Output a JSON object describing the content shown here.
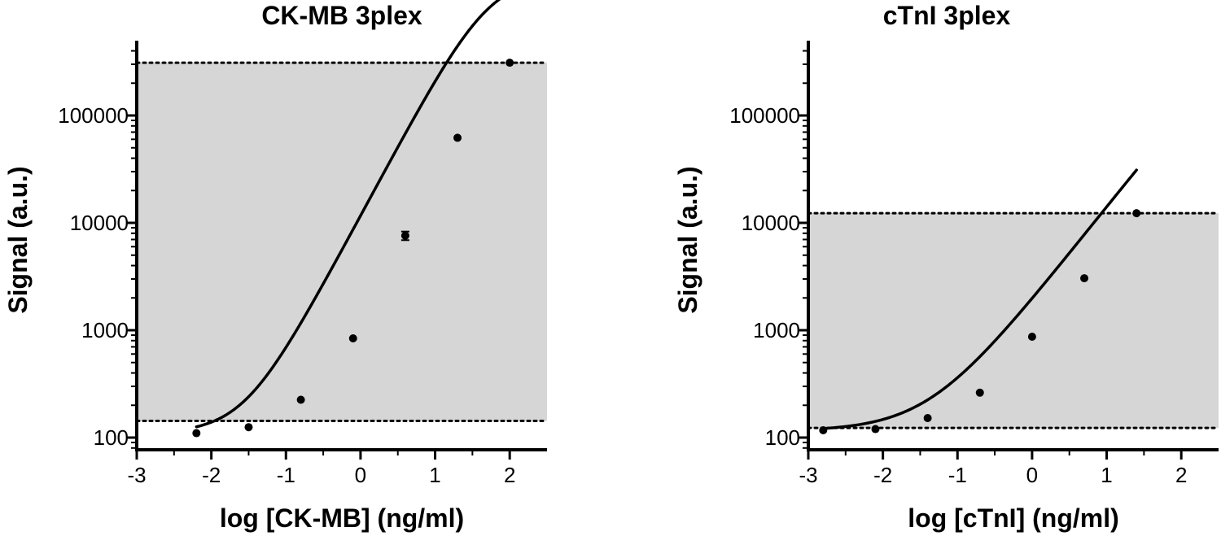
{
  "chart_data": [
    {
      "type": "line",
      "title": "CK-MB 3plex",
      "xlabel": "log [CK-MB] (ng/ml)",
      "ylabel": "Signal (a.u.)",
      "xlim": [
        -3,
        2.5
      ],
      "ylim": [
        70,
        350000
      ],
      "yscale": "log",
      "xticks": [
        "-3",
        "-2",
        "-1",
        "0",
        "1",
        "2"
      ],
      "yticks": [
        "100",
        "1000",
        "10000",
        "100000"
      ],
      "grid": false,
      "shaded_range": [
        143,
        310000
      ],
      "points": [
        {
          "x": -2.2,
          "y": 110
        },
        {
          "x": -1.5,
          "y": 125
        },
        {
          "x": -0.8,
          "y": 225
        },
        {
          "x": -0.1,
          "y": 840
        },
        {
          "x": 0.6,
          "y": 7600
        },
        {
          "x": 1.3,
          "y": 62000
        },
        {
          "x": 2.0,
          "y": 310000
        }
      ],
      "error_bars": [
        {
          "x": 0.6,
          "low": 6900,
          "high": 8300
        }
      ],
      "curve": {
        "bottom": 110,
        "top": 2000000,
        "log_ec50": 1.72,
        "hill": 1.3
      }
    },
    {
      "type": "line",
      "title": "cTnI 3plex",
      "xlabel": "log [cTnI] (ng/ml)",
      "ylabel": "Signal (a.u.)",
      "xlim": [
        -3,
        2.5
      ],
      "ylim": [
        70,
        350000
      ],
      "yscale": "log",
      "xticks": [
        "-3",
        "-2",
        "-1",
        "0",
        "1",
        "2"
      ],
      "yticks": [
        "100",
        "1000",
        "10000",
        "100000"
      ],
      "grid": false,
      "shaded_range": [
        123,
        12300
      ],
      "points": [
        {
          "x": -2.8,
          "y": 117
        },
        {
          "x": -2.1,
          "y": 120
        },
        {
          "x": -1.4,
          "y": 152
        },
        {
          "x": -0.7,
          "y": 262
        },
        {
          "x": 0.0,
          "y": 870
        },
        {
          "x": 0.7,
          "y": 3050
        },
        {
          "x": 1.4,
          "y": 12300
        }
      ],
      "error_bars": [],
      "curve": {
        "bottom": 115,
        "top": 1000000,
        "log_ec50": 3.1,
        "hill": 0.88
      }
    }
  ]
}
